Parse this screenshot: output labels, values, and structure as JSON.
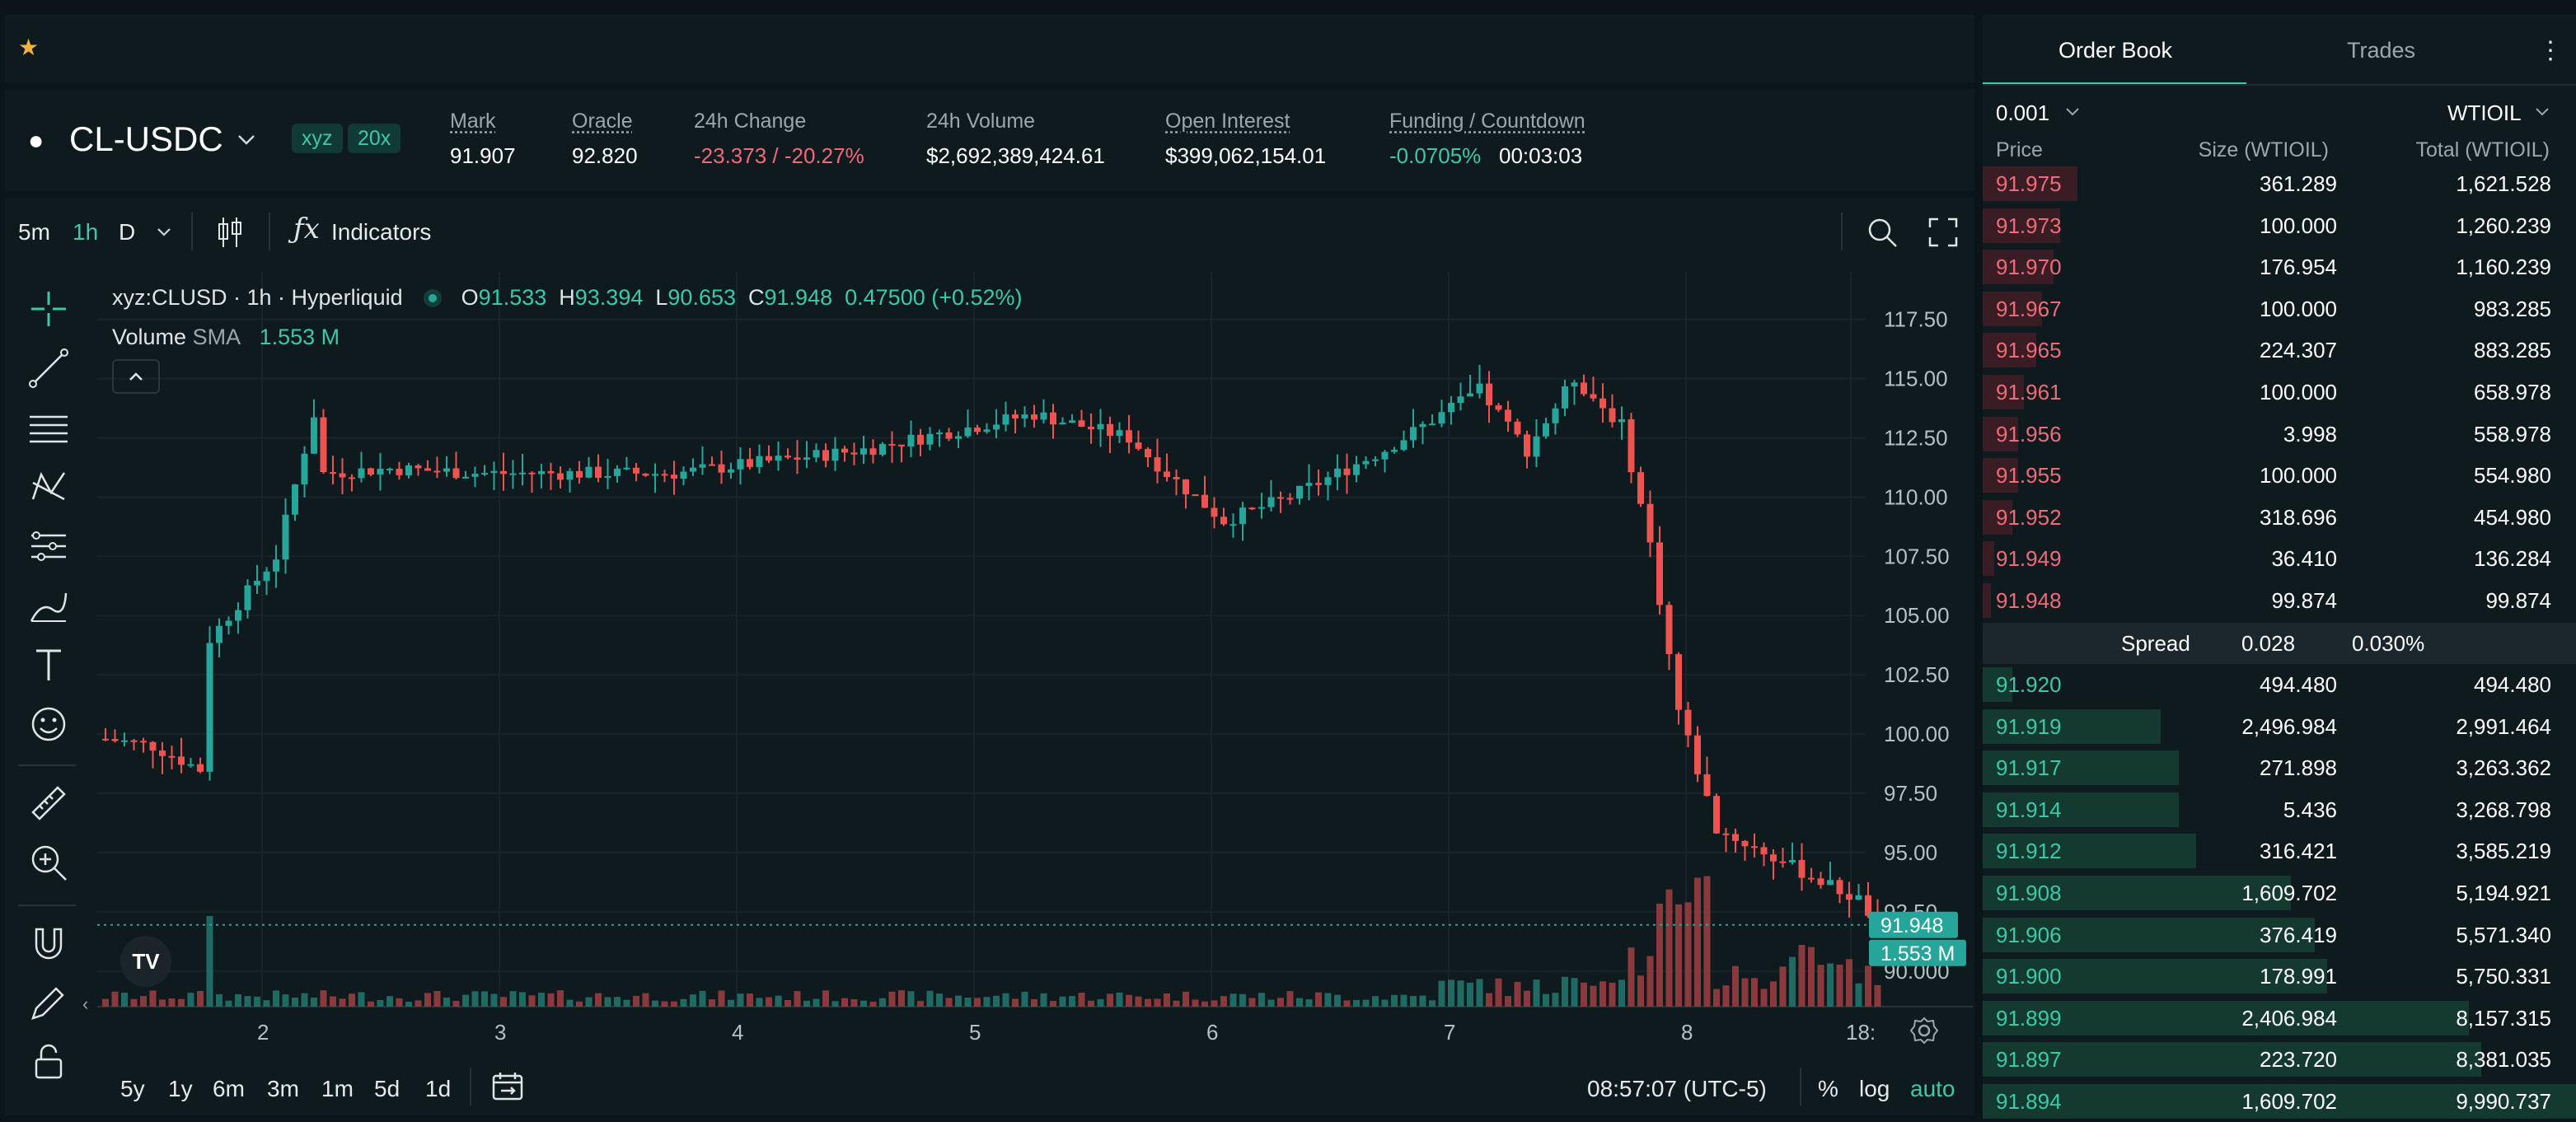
{
  "colors": {
    "up": "#26a69a",
    "down": "#ef5350",
    "accent": "#3bc9a8",
    "bg": "#0f1a1f"
  },
  "header": {
    "star_icon": "star-icon",
    "pair": "CL-USDC",
    "badges": [
      "xyz",
      "20x"
    ],
    "stats": [
      {
        "label": "Mark",
        "value": "91.907"
      },
      {
        "label": "Oracle",
        "value": "92.820"
      },
      {
        "label": "24h Change",
        "value": "-23.373 / -20.27%"
      },
      {
        "label": "24h Volume",
        "value": "$2,692,389,424.61"
      },
      {
        "label": "Open Interest",
        "value": "$399,062,154.01"
      },
      {
        "label": "Funding / Countdown",
        "value": "-0.0705%",
        "value2": "00:03:03"
      }
    ]
  },
  "toolbar": {
    "intervals": [
      "5m",
      "1h",
      "D"
    ],
    "indicators": "Indicators"
  },
  "legend": {
    "symbol": "xyz:CLUSD · 1h · Hyperliquid",
    "o_label": "O",
    "o": "91.533",
    "h_label": "H",
    "h": "93.394",
    "l_label": "L",
    "l": "90.653",
    "c_label": "C",
    "c": "91.948",
    "change": "0.47500 (+0.52%)",
    "volume_label": "Volume",
    "sma_label": "SMA",
    "volume_value": "1.553 M"
  },
  "chart_data": {
    "type": "candlestick",
    "ylim": [
      88.5,
      119.5
    ],
    "y_ticks": [
      "117.50",
      "115.00",
      "112.50",
      "110.00",
      "107.50",
      "105.00",
      "102.50",
      "100.00",
      "97.50",
      "95.00",
      "92.50",
      "90.000"
    ],
    "x_ticks": [
      "2",
      "3",
      "4",
      "5",
      "6",
      "7",
      "8",
      "18:"
    ],
    "last_price": "91.948",
    "last_volume": "1.553 M",
    "key_points": [
      [
        0,
        99.8
      ],
      [
        5,
        99.5
      ],
      [
        10,
        98.5
      ],
      [
        11,
        104
      ],
      [
        18,
        107.5
      ],
      [
        22,
        113.5
      ],
      [
        23,
        111
      ],
      [
        30,
        111.2
      ],
      [
        40,
        111
      ],
      [
        60,
        111
      ],
      [
        80,
        112
      ],
      [
        98,
        113.5
      ],
      [
        108,
        112.5
      ],
      [
        112,
        111
      ],
      [
        118,
        109
      ],
      [
        125,
        110
      ],
      [
        135,
        112
      ],
      [
        145,
        114.5
      ],
      [
        150,
        112
      ],
      [
        155,
        115
      ],
      [
        160,
        113
      ],
      [
        163,
        108
      ],
      [
        166,
        101
      ],
      [
        170,
        96
      ],
      [
        175,
        95
      ],
      [
        180,
        94
      ],
      [
        185,
        93
      ],
      [
        187,
        91.95
      ]
    ]
  },
  "bottom": {
    "ranges": [
      "5y",
      "1y",
      "6m",
      "3m",
      "1m",
      "5d",
      "1d"
    ],
    "time": "08:57:07 (UTC-5)",
    "pct": "%",
    "log": "log",
    "auto": "auto"
  },
  "orderbook": {
    "tab_book": "Order Book",
    "tab_trades": "Trades",
    "tick": "0.001",
    "unit": "WTIOIL",
    "headers": [
      "Price",
      "Size (WTIOIL)",
      "Total (WTIOIL)"
    ],
    "asks": [
      {
        "price": "91.975",
        "size": "361.289",
        "total": "1,621.528",
        "depth": 0.16
      },
      {
        "price": "91.973",
        "size": "100.000",
        "total": "1,260.239",
        "depth": 0.13
      },
      {
        "price": "91.970",
        "size": "176.954",
        "total": "1,160.239",
        "depth": 0.12
      },
      {
        "price": "91.967",
        "size": "100.000",
        "total": "983.285",
        "depth": 0.1
      },
      {
        "price": "91.965",
        "size": "224.307",
        "total": "883.285",
        "depth": 0.09
      },
      {
        "price": "91.961",
        "size": "100.000",
        "total": "658.978",
        "depth": 0.07
      },
      {
        "price": "91.956",
        "size": "3.998",
        "total": "558.978",
        "depth": 0.06
      },
      {
        "price": "91.955",
        "size": "100.000",
        "total": "554.980",
        "depth": 0.06
      },
      {
        "price": "91.952",
        "size": "318.696",
        "total": "454.980",
        "depth": 0.05
      },
      {
        "price": "91.949",
        "size": "36.410",
        "total": "136.284",
        "depth": 0.02
      },
      {
        "price": "91.948",
        "size": "99.874",
        "total": "99.874",
        "depth": 0.01
      }
    ],
    "spread": {
      "label": "Spread",
      "value": "0.028",
      "pct": "0.030%"
    },
    "bids": [
      {
        "price": "91.920",
        "size": "494.480",
        "total": "494.480",
        "depth": 0.05
      },
      {
        "price": "91.919",
        "size": "2,496.984",
        "total": "2,991.464",
        "depth": 0.3
      },
      {
        "price": "91.917",
        "size": "271.898",
        "total": "3,263.362",
        "depth": 0.33
      },
      {
        "price": "91.914",
        "size": "5.436",
        "total": "3,268.798",
        "depth": 0.33
      },
      {
        "price": "91.912",
        "size": "316.421",
        "total": "3,585.219",
        "depth": 0.36
      },
      {
        "price": "91.908",
        "size": "1,609.702",
        "total": "5,194.921",
        "depth": 0.52
      },
      {
        "price": "91.906",
        "size": "376.419",
        "total": "5,571.340",
        "depth": 0.56
      },
      {
        "price": "91.900",
        "size": "178.991",
        "total": "5,750.331",
        "depth": 0.58
      },
      {
        "price": "91.899",
        "size": "2,406.984",
        "total": "8,157.315",
        "depth": 0.82
      },
      {
        "price": "91.897",
        "size": "223.720",
        "total": "8,381.035",
        "depth": 0.84
      },
      {
        "price": "91.894",
        "size": "1,609.702",
        "total": "9,990.737",
        "depth": 1.0
      }
    ]
  }
}
